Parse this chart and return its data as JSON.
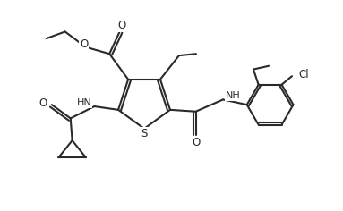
{
  "background_color": "#ffffff",
  "line_color": "#2a2a2a",
  "line_width": 1.5,
  "figsize": [
    3.83,
    2.36
  ],
  "dpi": 100,
  "xlim": [
    0,
    10
  ],
  "ylim": [
    0,
    6.16
  ]
}
